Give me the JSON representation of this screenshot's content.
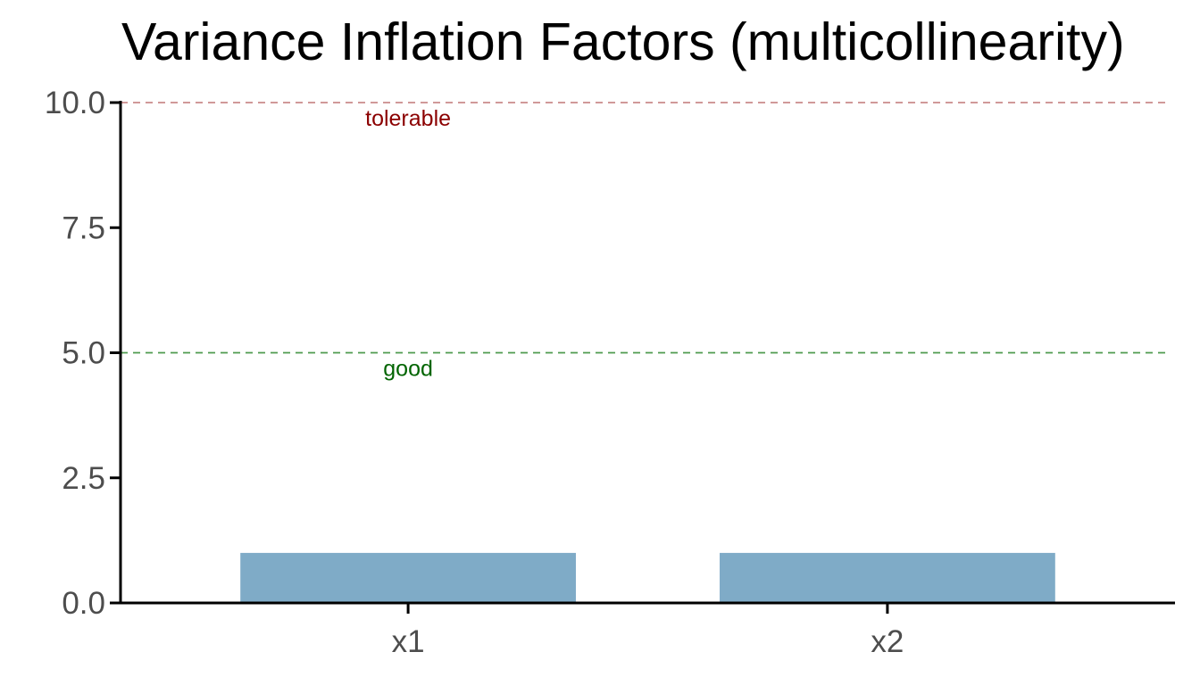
{
  "chart_data": {
    "type": "bar",
    "title": "Variance Inflation Factors (multicollinearity)",
    "xlabel": "",
    "ylabel": "",
    "categories": [
      "x1",
      "x2"
    ],
    "values": [
      1.0,
      1.0
    ],
    "ylim": [
      0,
      10
    ],
    "yticks": [
      0,
      2.5,
      5,
      7.5,
      10
    ],
    "ytick_labels": [
      "0.0",
      "2.5",
      "5.0",
      "7.5",
      "10.0"
    ],
    "bar_color": "#7fabc7",
    "grid": false,
    "legend": "none",
    "reference_lines": [
      {
        "value": 10,
        "label": "tolerable",
        "line_color": "#c98b8b",
        "label_color": "#8b0000",
        "style": "dashed"
      },
      {
        "value": 5,
        "label": "good",
        "line_color": "#4e9a4e",
        "label_color": "#006400",
        "style": "dashed"
      }
    ]
  }
}
